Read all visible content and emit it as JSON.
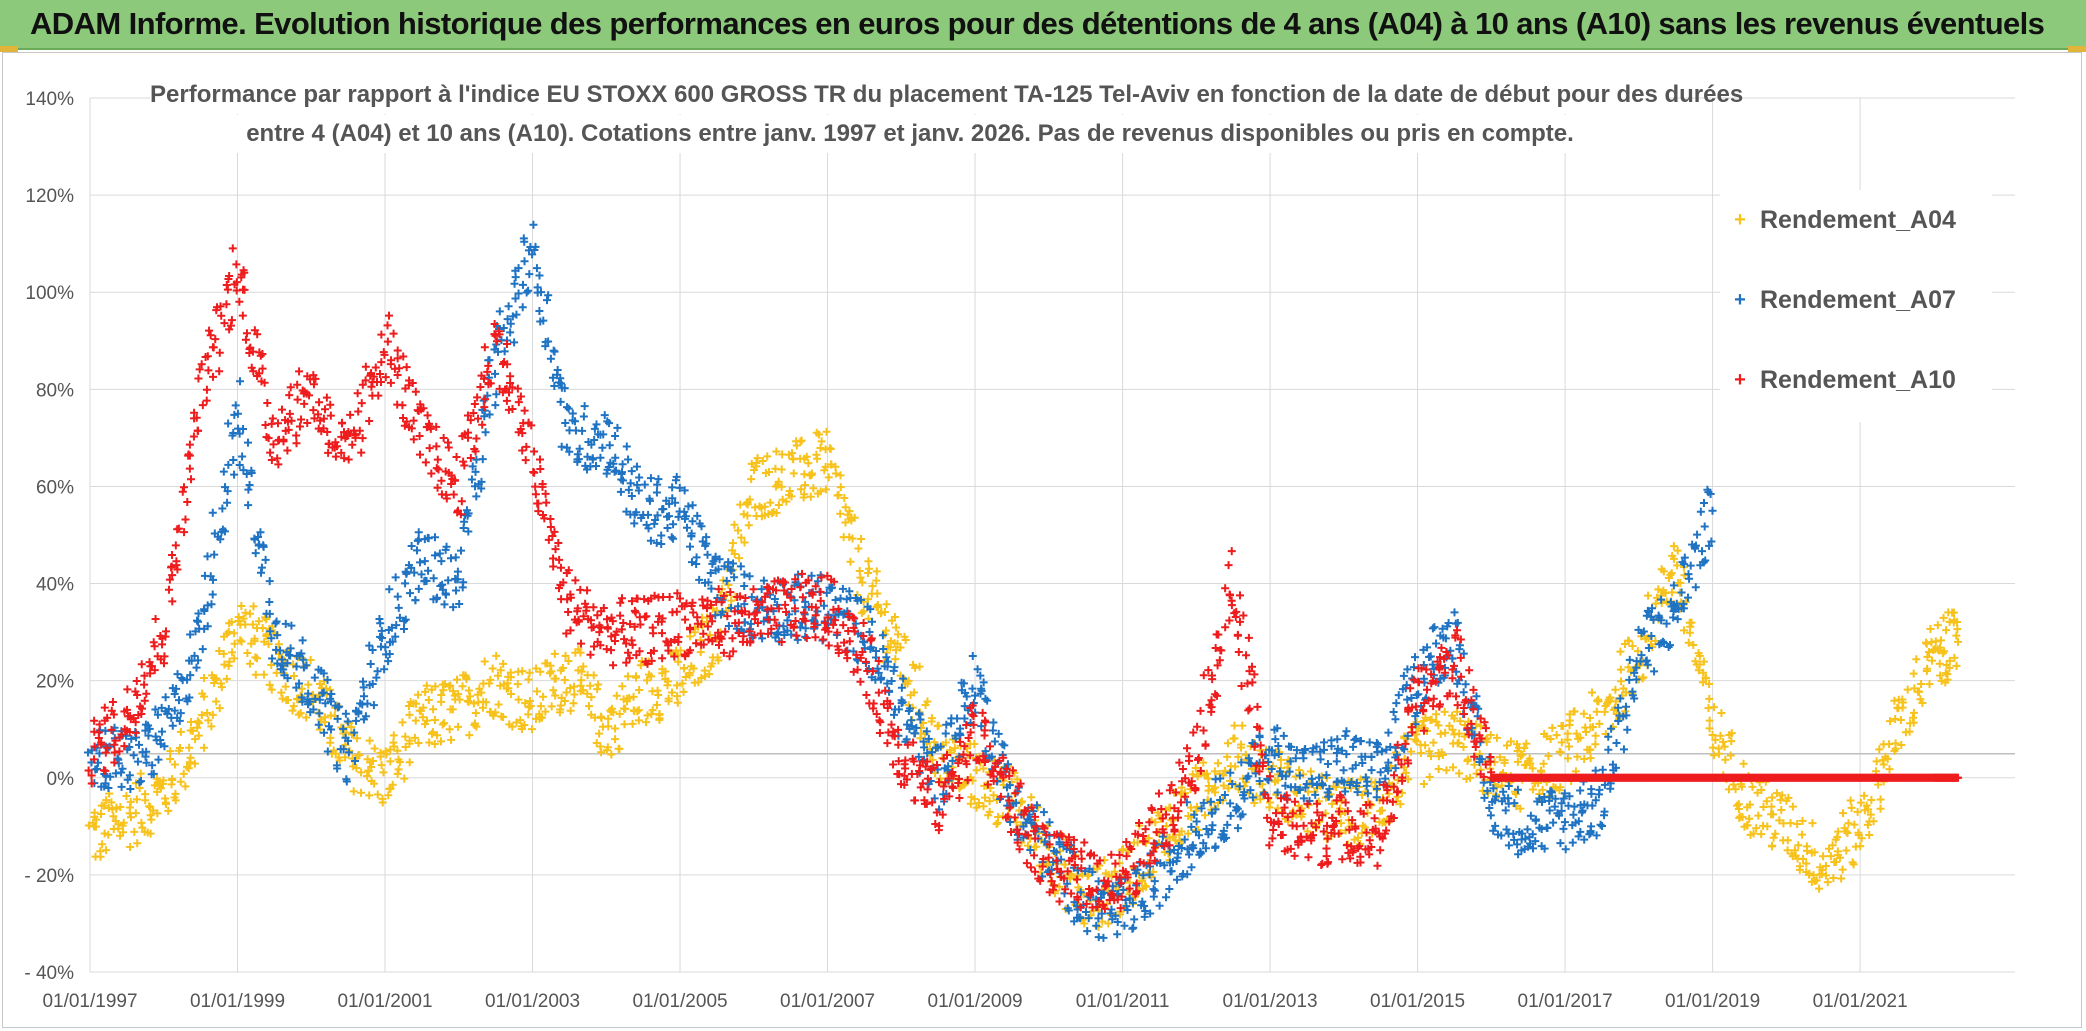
{
  "header": {
    "title": "ADAM Informe. Evolution historique des performances en euros pour des détentions de 4 ans (A04) à 10 ans (A10) sans les revenus éventuels"
  },
  "chart_data": {
    "type": "scatter",
    "title_line1": "Performance par rapport à l'indice EU STOXX 600 GROSS TR  du placement TA-125 Tel-Aviv en fonction de la date de début pour des durées",
    "title_line2": "entre 4 (A04) et 10 ans (A10). Cotations entre janv. 1997 et janv. 2026. Pas de revenus disponibles ou pris en compte.",
    "xlabel": "",
    "ylabel": "",
    "x_range": [
      "1997-01-01",
      "2022-01-01"
    ],
    "ylim": [
      -40,
      140
    ],
    "y_ticks": [
      140,
      120,
      100,
      80,
      60,
      40,
      20,
      0,
      -20,
      -40
    ],
    "y_tick_labels": [
      "140%",
      "120%",
      "100%",
      "80%",
      "60%",
      "40%",
      "20%",
      "0%",
      "- 20%",
      "- 40%"
    ],
    "x_tick_labels": [
      "01/01/1997",
      "01/01/1999",
      "01/01/2001",
      "01/01/2003",
      "01/01/2005",
      "01/01/2007",
      "01/01/2009",
      "01/01/2011",
      "01/01/2013",
      "01/01/2015",
      "01/01/2017",
      "01/01/2019",
      "01/01/2021"
    ],
    "grid": true,
    "legend_position": "top-right",
    "marker": "+",
    "series": [
      {
        "name": "Rendement_A04",
        "color": "#f7c21b",
        "x": [
          "1997-01-01",
          "1997-07-01",
          "1998-01-01",
          "1998-07-01",
          "1999-01-01",
          "1999-07-01",
          "2000-01-01",
          "2000-07-01",
          "2001-01-01",
          "2001-07-01",
          "2002-01-01",
          "2002-07-01",
          "2003-01-01",
          "2003-07-01",
          "2004-01-01",
          "2004-07-01",
          "2005-01-01",
          "2005-07-01",
          "2006-01-01",
          "2006-07-01",
          "2007-01-01",
          "2007-07-01",
          "2008-01-01",
          "2008-07-01",
          "2009-01-01",
          "2009-07-01",
          "2010-01-01",
          "2010-07-01",
          "2011-01-01",
          "2011-07-01",
          "2012-01-01",
          "2012-07-01",
          "2013-01-01",
          "2013-07-01",
          "2014-01-01",
          "2014-07-01",
          "2015-01-01",
          "2015-07-01",
          "2016-01-01",
          "2016-07-01",
          "2017-01-01",
          "2017-07-01",
          "2018-01-01",
          "2018-07-01",
          "2019-01-01",
          "2019-07-01",
          "2020-01-01",
          "2020-07-01",
          "2021-01-01",
          "2021-07-01",
          "2022-01-01",
          "2022-05-01"
        ],
        "y": [
          -12,
          -8,
          -3,
          10,
          32,
          24,
          18,
          5,
          0,
          12,
          14,
          20,
          15,
          22,
          10,
          18,
          20,
          30,
          60,
          62,
          65,
          40,
          25,
          5,
          0,
          -5,
          -15,
          -25,
          -22,
          -12,
          -5,
          5,
          0,
          -5,
          -8,
          -5,
          5,
          8,
          2,
          0,
          5,
          12,
          25,
          45,
          10,
          -5,
          -10,
          -18,
          -10,
          10,
          25,
          28
        ]
      },
      {
        "name": "Rendement_A07",
        "color": "#1f73c2",
        "x": [
          "1997-01-01",
          "1997-07-01",
          "1998-01-01",
          "1998-07-01",
          "1999-01-01",
          "1999-07-01",
          "2000-01-01",
          "2000-07-01",
          "2001-01-01",
          "2001-07-01",
          "2002-01-01",
          "2002-07-01",
          "2003-01-01",
          "2003-07-01",
          "2004-01-01",
          "2004-07-01",
          "2005-01-01",
          "2005-07-01",
          "2006-01-01",
          "2006-07-01",
          "2007-01-01",
          "2007-07-01",
          "2008-01-01",
          "2008-07-01",
          "2009-01-01",
          "2009-07-01",
          "2010-01-01",
          "2010-07-01",
          "2011-01-01",
          "2011-07-01",
          "2012-01-01",
          "2012-07-01",
          "2013-01-01",
          "2013-07-01",
          "2014-01-01",
          "2014-07-01",
          "2015-01-01",
          "2015-07-01",
          "2016-01-01",
          "2016-07-01",
          "2017-01-01",
          "2017-07-01",
          "2018-01-01",
          "2018-07-01",
          "2019-01-01"
        ],
        "y": [
          5,
          3,
          8,
          30,
          75,
          30,
          20,
          5,
          30,
          45,
          40,
          85,
          110,
          70,
          70,
          55,
          55,
          40,
          35,
          35,
          35,
          30,
          15,
          0,
          20,
          -5,
          -15,
          -25,
          -28,
          -20,
          -10,
          -5,
          5,
          0,
          3,
          0,
          20,
          30,
          -5,
          -10,
          -8,
          -5,
          25,
          35,
          55
        ]
      },
      {
        "name": "Rendement_A10",
        "color": "#ee1c1c",
        "x": [
          "1997-01-01",
          "1997-07-01",
          "1998-01-01",
          "1998-07-01",
          "1999-01-01",
          "1999-07-01",
          "2000-01-01",
          "2000-07-01",
          "2001-01-01",
          "2001-07-01",
          "2002-01-01",
          "2002-07-01",
          "2003-01-01",
          "2003-07-01",
          "2004-01-01",
          "2004-07-01",
          "2005-01-01",
          "2005-07-01",
          "2006-01-01",
          "2006-07-01",
          "2007-01-01",
          "2007-07-01",
          "2008-01-01",
          "2008-07-01",
          "2009-01-01",
          "2009-07-01",
          "2010-01-01",
          "2010-07-01",
          "2011-01-01",
          "2011-07-01",
          "2012-01-01",
          "2012-07-01",
          "2013-01-01",
          "2013-07-01",
          "2014-01-01",
          "2014-07-01",
          "2015-01-01",
          "2015-07-01",
          "2016-01-01",
          "2016-07-01",
          "2017-01-01",
          "2017-07-01",
          "2018-01-01",
          "2018-07-01",
          "2019-01-01",
          "2019-07-01",
          "2020-01-01",
          "2020-07-01",
          "2021-01-01",
          "2021-07-01",
          "2022-01-01",
          "2022-05-01"
        ],
        "y": [
          5,
          12,
          30,
          78,
          105,
          70,
          80,
          65,
          90,
          70,
          60,
          90,
          65,
          35,
          30,
          30,
          32,
          32,
          32,
          35,
          35,
          25,
          5,
          -5,
          10,
          -5,
          -18,
          -20,
          -22,
          -10,
          5,
          40,
          -8,
          -12,
          -10,
          -12,
          15,
          25,
          0,
          0,
          0,
          0,
          0,
          0,
          0,
          0,
          0,
          0,
          0,
          0,
          0,
          0
        ]
      }
    ]
  }
}
